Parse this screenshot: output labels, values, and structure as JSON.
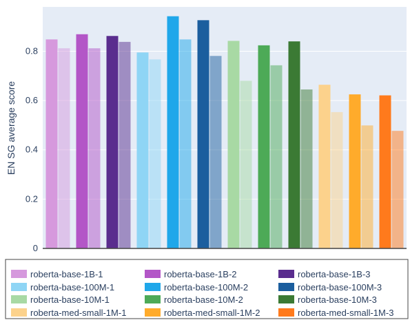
{
  "chart_data": {
    "type": "bar",
    "ylabel": "EN SG average score",
    "xlabel": "",
    "ylim": [
      0,
      0.98
    ],
    "yticks": [
      0,
      0.2,
      0.4,
      0.6,
      0.8
    ],
    "ytick_labels": [
      "0",
      "0.2",
      "0.4",
      "0.6",
      "0.8"
    ],
    "grid": true,
    "legend_position": "bottom",
    "series": [
      {
        "name": "roberta-base-1B-1",
        "color": "#d699dd",
        "values": [
          0.848,
          0.812
        ]
      },
      {
        "name": "roberta-base-1B-2",
        "color": "#b356c7",
        "values": [
          0.869,
          0.812
        ]
      },
      {
        "name": "roberta-base-1B-3",
        "color": "#5a2d8e",
        "values": [
          0.862,
          0.838
        ]
      },
      {
        "name": "roberta-base-100M-1",
        "color": "#8fd5f5",
        "values": [
          0.795,
          0.767
        ]
      },
      {
        "name": "roberta-base-100M-2",
        "color": "#1fa7ea",
        "values": [
          0.942,
          0.848
        ]
      },
      {
        "name": "roberta-base-100M-3",
        "color": "#1b5e9e",
        "values": [
          0.926,
          0.781
        ]
      },
      {
        "name": "roberta-base-10M-1",
        "color": "#a8d9a4",
        "values": [
          0.842,
          0.68
        ]
      },
      {
        "name": "roberta-base-10M-2",
        "color": "#4daa57",
        "values": [
          0.824,
          0.743
        ]
      },
      {
        "name": "roberta-base-10M-3",
        "color": "#3b7a34",
        "values": [
          0.84,
          0.645
        ]
      },
      {
        "name": "roberta-med-small-1M-1",
        "color": "#fcd28c",
        "values": [
          0.664,
          0.553
        ]
      },
      {
        "name": "roberta-med-small-1M-2",
        "color": "#ffab2b",
        "values": [
          0.625,
          0.499
        ]
      },
      {
        "name": "roberta-med-small-1M-3",
        "color": "#ff7a1c",
        "values": [
          0.621,
          0.477
        ]
      }
    ]
  }
}
